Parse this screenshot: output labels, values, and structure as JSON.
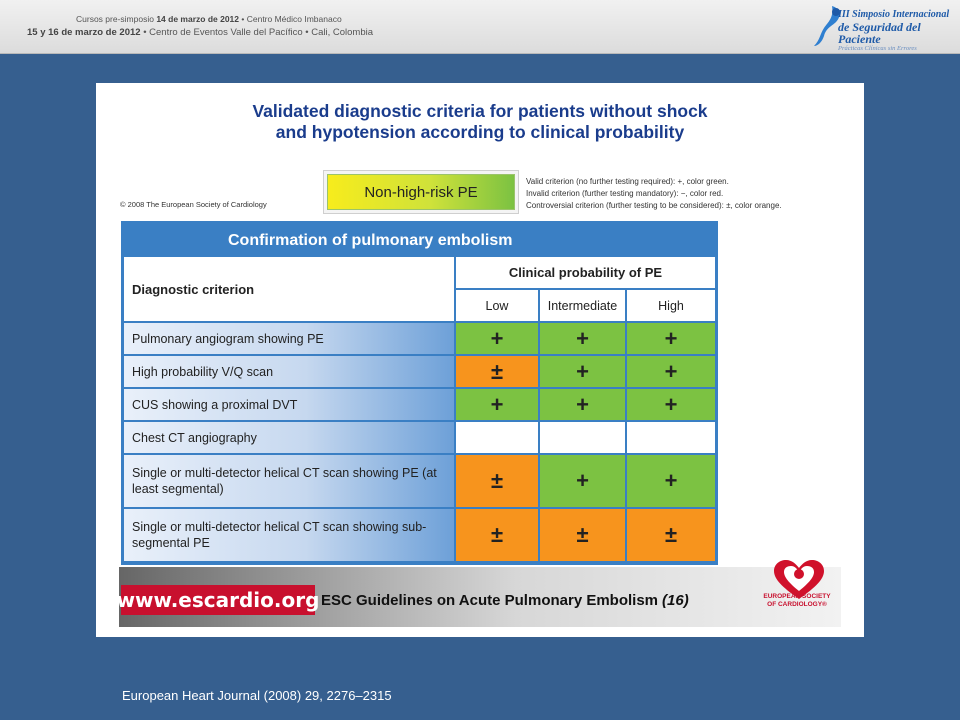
{
  "banner": {
    "line1_pre": "Cursos pre-simposio",
    "line1_date": "14 de marzo de 2012",
    "line1_post": "• Centro Médico Imbanaco",
    "line2_date": "15 y 16 de marzo de 2012",
    "line2_post": "• Centro de Eventos Valle del Pacífico • Cali, Colombia",
    "logo_t1": "III Simposio Internacional",
    "logo_t2": "de Seguridad del Paciente",
    "logo_t3": "Prácticas Clínicas sin Errores"
  },
  "slide": {
    "title_line1": "Validated diagnostic criteria for patients without shock",
    "title_line2": "and hypotension according to clinical probability",
    "copyright": "© 2008 The European Society of Cardiology",
    "risk_label": "Non-high-risk PE",
    "legend": [
      "Valid criterion (no further testing required): +, color green.",
      "Invalid criterion (further testing mandatory): −, color red.",
      "Controversial criterion (further testing to be considered): ±, color orange."
    ],
    "table": {
      "heading": "Confirmation of pulmonary embolism",
      "criterion_header": "Diagnostic criterion",
      "probability_header": "Clinical probability of PE",
      "columns": [
        "Low",
        "Intermediate",
        "High"
      ],
      "rows": [
        {
          "label": "Pulmonary angiogram showing PE",
          "values": [
            "+",
            "+",
            "+"
          ]
        },
        {
          "label": "High probability V/Q scan",
          "values": [
            "±",
            "+",
            "+"
          ]
        },
        {
          "label": "CUS showing a proximal DVT",
          "values": [
            "+",
            "+",
            "+"
          ]
        },
        {
          "label": "Chest CT angiography",
          "values": [
            "",
            "",
            ""
          ]
        },
        {
          "label": "Single or multi-detector helical CT scan showing PE (at least segmental)",
          "values": [
            "±",
            "+",
            "+"
          ]
        },
        {
          "label": "Single or multi-detector helical CT scan showing sub-segmental PE",
          "values": [
            "±",
            "±",
            "±"
          ]
        }
      ]
    },
    "strip": {
      "url": "www.escardio.org",
      "title": "ESC Guidelines on Acute Pulmonary Embolism",
      "ref": "(16)",
      "esc_logo_text": "EUROPEAN SOCIETY OF CARDIOLOGY®"
    }
  },
  "colors": {
    "valid": "#7cc242",
    "controversial": "#f7941d",
    "blank": "#ffffff"
  },
  "footer": {
    "citation": "European Heart Journal (2008) 29, 2276–2315"
  }
}
